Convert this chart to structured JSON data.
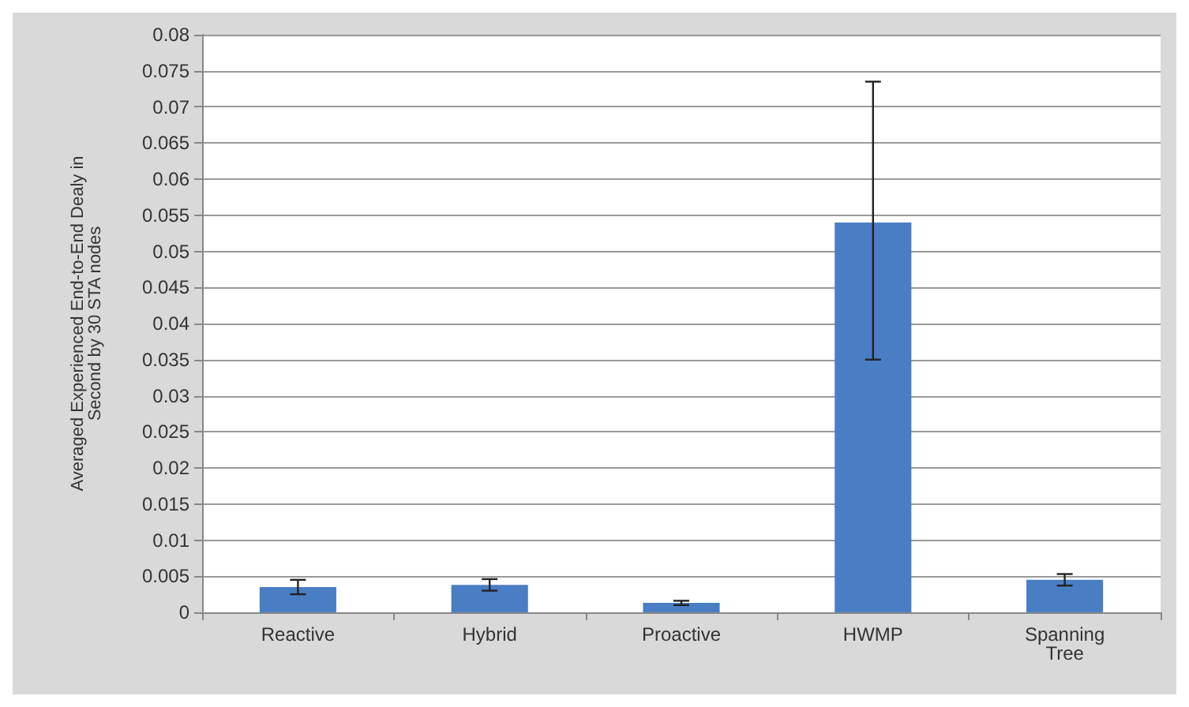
{
  "chart_data": {
    "type": "bar",
    "ylabel": "Averaged Experienced End-to-End Dealy in\nSecond by 30 STA nodes",
    "categories": [
      "Reactive",
      "Hybrid",
      "Proactive",
      "HWMP",
      "Spanning\nTree"
    ],
    "values": [
      0.0035,
      0.0038,
      0.0013,
      0.054,
      0.0045
    ],
    "errors": [
      0.001,
      0.0008,
      0.0003,
      [
        0.035,
        0.0735
      ],
      0.0008
    ],
    "color": "#4a7ec4",
    "ylim": [
      0,
      0.08
    ],
    "yticks": [
      0,
      0.005,
      0.01,
      0.015,
      0.02,
      0.025,
      0.03,
      0.035,
      0.04,
      0.045,
      0.05,
      0.055,
      0.06,
      0.065,
      0.07,
      0.075,
      0.08
    ],
    "grid": "y"
  }
}
